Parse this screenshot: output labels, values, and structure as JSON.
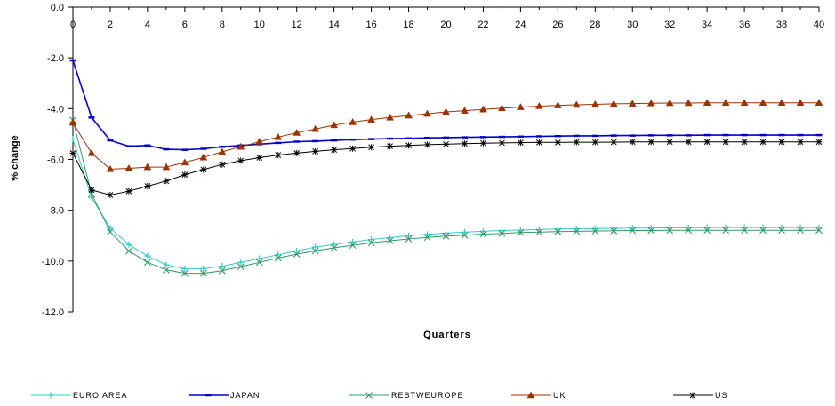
{
  "chart_data": {
    "type": "line",
    "title": "",
    "xlabel": "Quarters",
    "ylabel": "% change",
    "xlim": [
      0,
      40
    ],
    "ylim": [
      -12,
      0
    ],
    "x_ticks": [
      "0",
      "2",
      "4",
      "6",
      "8",
      "10",
      "12",
      "14",
      "16",
      "18",
      "20",
      "22",
      "24",
      "26",
      "28",
      "30",
      "32",
      "34",
      "36",
      "38",
      "40"
    ],
    "y_ticks": [
      "0.0",
      "-2.0",
      "-4.0",
      "-6.0",
      "-8.0",
      "-10.0",
      "-12.0"
    ],
    "legend_position": "bottom",
    "grid": false,
    "x": [
      0,
      1,
      2,
      3,
      4,
      5,
      6,
      7,
      8,
      9,
      10,
      11,
      12,
      13,
      14,
      15,
      16,
      17,
      18,
      19,
      20,
      21,
      22,
      23,
      24,
      25,
      26,
      27,
      28,
      29,
      30,
      31,
      32,
      33,
      34,
      35,
      36,
      37,
      38,
      39,
      40
    ],
    "series": [
      {
        "name": "EURO AREA",
        "color": "#33CCCC",
        "marker": "plus",
        "values": [
          -5.2,
          -7.5,
          -8.7,
          -9.35,
          -9.8,
          -10.15,
          -10.3,
          -10.3,
          -10.2,
          -10.05,
          -9.9,
          -9.75,
          -9.6,
          -9.45,
          -9.35,
          -9.25,
          -9.15,
          -9.08,
          -9.0,
          -8.95,
          -8.9,
          -8.86,
          -8.83,
          -8.8,
          -8.78,
          -8.76,
          -8.74,
          -8.73,
          -8.72,
          -8.71,
          -8.7,
          -8.7,
          -8.69,
          -8.69,
          -8.68,
          -8.68,
          -8.68,
          -8.68,
          -8.68,
          -8.68,
          -8.68
        ]
      },
      {
        "name": "JAPAN",
        "color": "#0000CC",
        "marker": "dash",
        "values": [
          -2.1,
          -4.35,
          -5.25,
          -5.48,
          -5.45,
          -5.6,
          -5.62,
          -5.58,
          -5.5,
          -5.45,
          -5.4,
          -5.35,
          -5.3,
          -5.28,
          -5.25,
          -5.22,
          -5.2,
          -5.18,
          -5.17,
          -5.15,
          -5.14,
          -5.13,
          -5.12,
          -5.11,
          -5.1,
          -5.09,
          -5.08,
          -5.07,
          -5.07,
          -5.06,
          -5.06,
          -5.05,
          -5.05,
          -5.05,
          -5.04,
          -5.04,
          -5.04,
          -5.04,
          -5.04,
          -5.04,
          -5.04
        ]
      },
      {
        "name": "RESTWEUROPE",
        "color": "#339966",
        "marker": "x",
        "values": [
          -4.45,
          -7.35,
          -8.85,
          -9.6,
          -10.05,
          -10.35,
          -10.48,
          -10.48,
          -10.38,
          -10.22,
          -10.05,
          -9.88,
          -9.73,
          -9.6,
          -9.48,
          -9.38,
          -9.28,
          -9.2,
          -9.13,
          -9.07,
          -9.02,
          -8.98,
          -8.94,
          -8.91,
          -8.88,
          -8.86,
          -8.84,
          -8.83,
          -8.82,
          -8.81,
          -8.8,
          -8.8,
          -8.79,
          -8.79,
          -8.79,
          -8.79,
          -8.79,
          -8.79,
          -8.79,
          -8.79,
          -8.79
        ]
      },
      {
        "name": "UK",
        "color": "#993300",
        "marker": "triangle",
        "values": [
          -4.55,
          -5.75,
          -6.38,
          -6.35,
          -6.3,
          -6.3,
          -6.12,
          -5.92,
          -5.7,
          -5.5,
          -5.3,
          -5.12,
          -4.95,
          -4.8,
          -4.65,
          -4.53,
          -4.43,
          -4.35,
          -4.27,
          -4.2,
          -4.13,
          -4.08,
          -4.03,
          -3.98,
          -3.94,
          -3.9,
          -3.87,
          -3.85,
          -3.83,
          -3.81,
          -3.8,
          -3.79,
          -3.78,
          -3.78,
          -3.77,
          -3.77,
          -3.77,
          -3.77,
          -3.77,
          -3.77,
          -3.77
        ]
      },
      {
        "name": "US",
        "color": "#000000",
        "marker": "star",
        "values": [
          -5.75,
          -7.2,
          -7.4,
          -7.25,
          -7.05,
          -6.85,
          -6.6,
          -6.4,
          -6.2,
          -6.05,
          -5.93,
          -5.83,
          -5.75,
          -5.68,
          -5.62,
          -5.57,
          -5.52,
          -5.48,
          -5.45,
          -5.42,
          -5.4,
          -5.38,
          -5.36,
          -5.35,
          -5.34,
          -5.33,
          -5.33,
          -5.32,
          -5.32,
          -5.32,
          -5.31,
          -5.31,
          -5.31,
          -5.31,
          -5.31,
          -5.31,
          -5.31,
          -5.31,
          -5.31,
          -5.31,
          -5.31
        ]
      }
    ]
  }
}
